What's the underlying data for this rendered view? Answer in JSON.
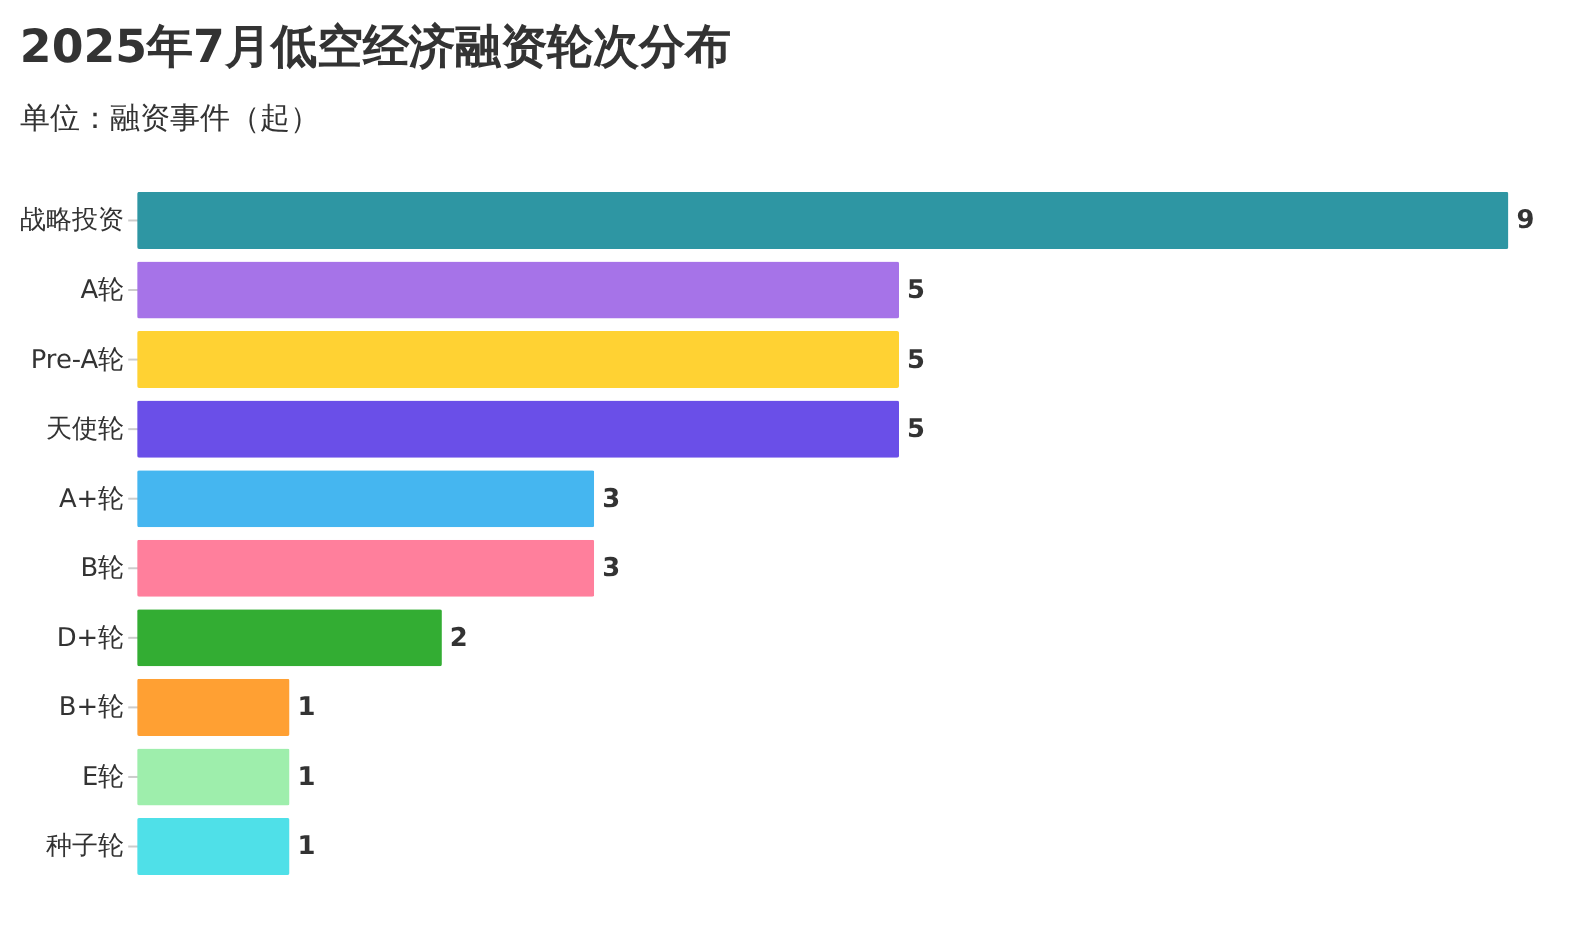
{
  "chart_data": {
    "type": "bar",
    "orientation": "horizontal",
    "title": "2025年7月低空经济融资轮次分布",
    "subtitle": "单位：融资事件（起）",
    "categories": [
      "战略投资",
      "A轮",
      "Pre-A轮",
      "天使轮",
      "A+轮",
      "B轮",
      "D+轮",
      "B+轮",
      "E轮",
      "种子轮"
    ],
    "values": [
      9,
      5,
      5,
      5,
      3,
      3,
      2,
      1,
      1,
      1
    ],
    "colors": [
      "#2e96a3",
      "#a673e8",
      "#ffd233",
      "#6a4fe8",
      "#45b6f0",
      "#ff7f9c",
      "#33ad33",
      "#ffa033",
      "#9eeeac",
      "#4fe0e8"
    ],
    "data_labels": true,
    "tick_labels": "y"
  }
}
